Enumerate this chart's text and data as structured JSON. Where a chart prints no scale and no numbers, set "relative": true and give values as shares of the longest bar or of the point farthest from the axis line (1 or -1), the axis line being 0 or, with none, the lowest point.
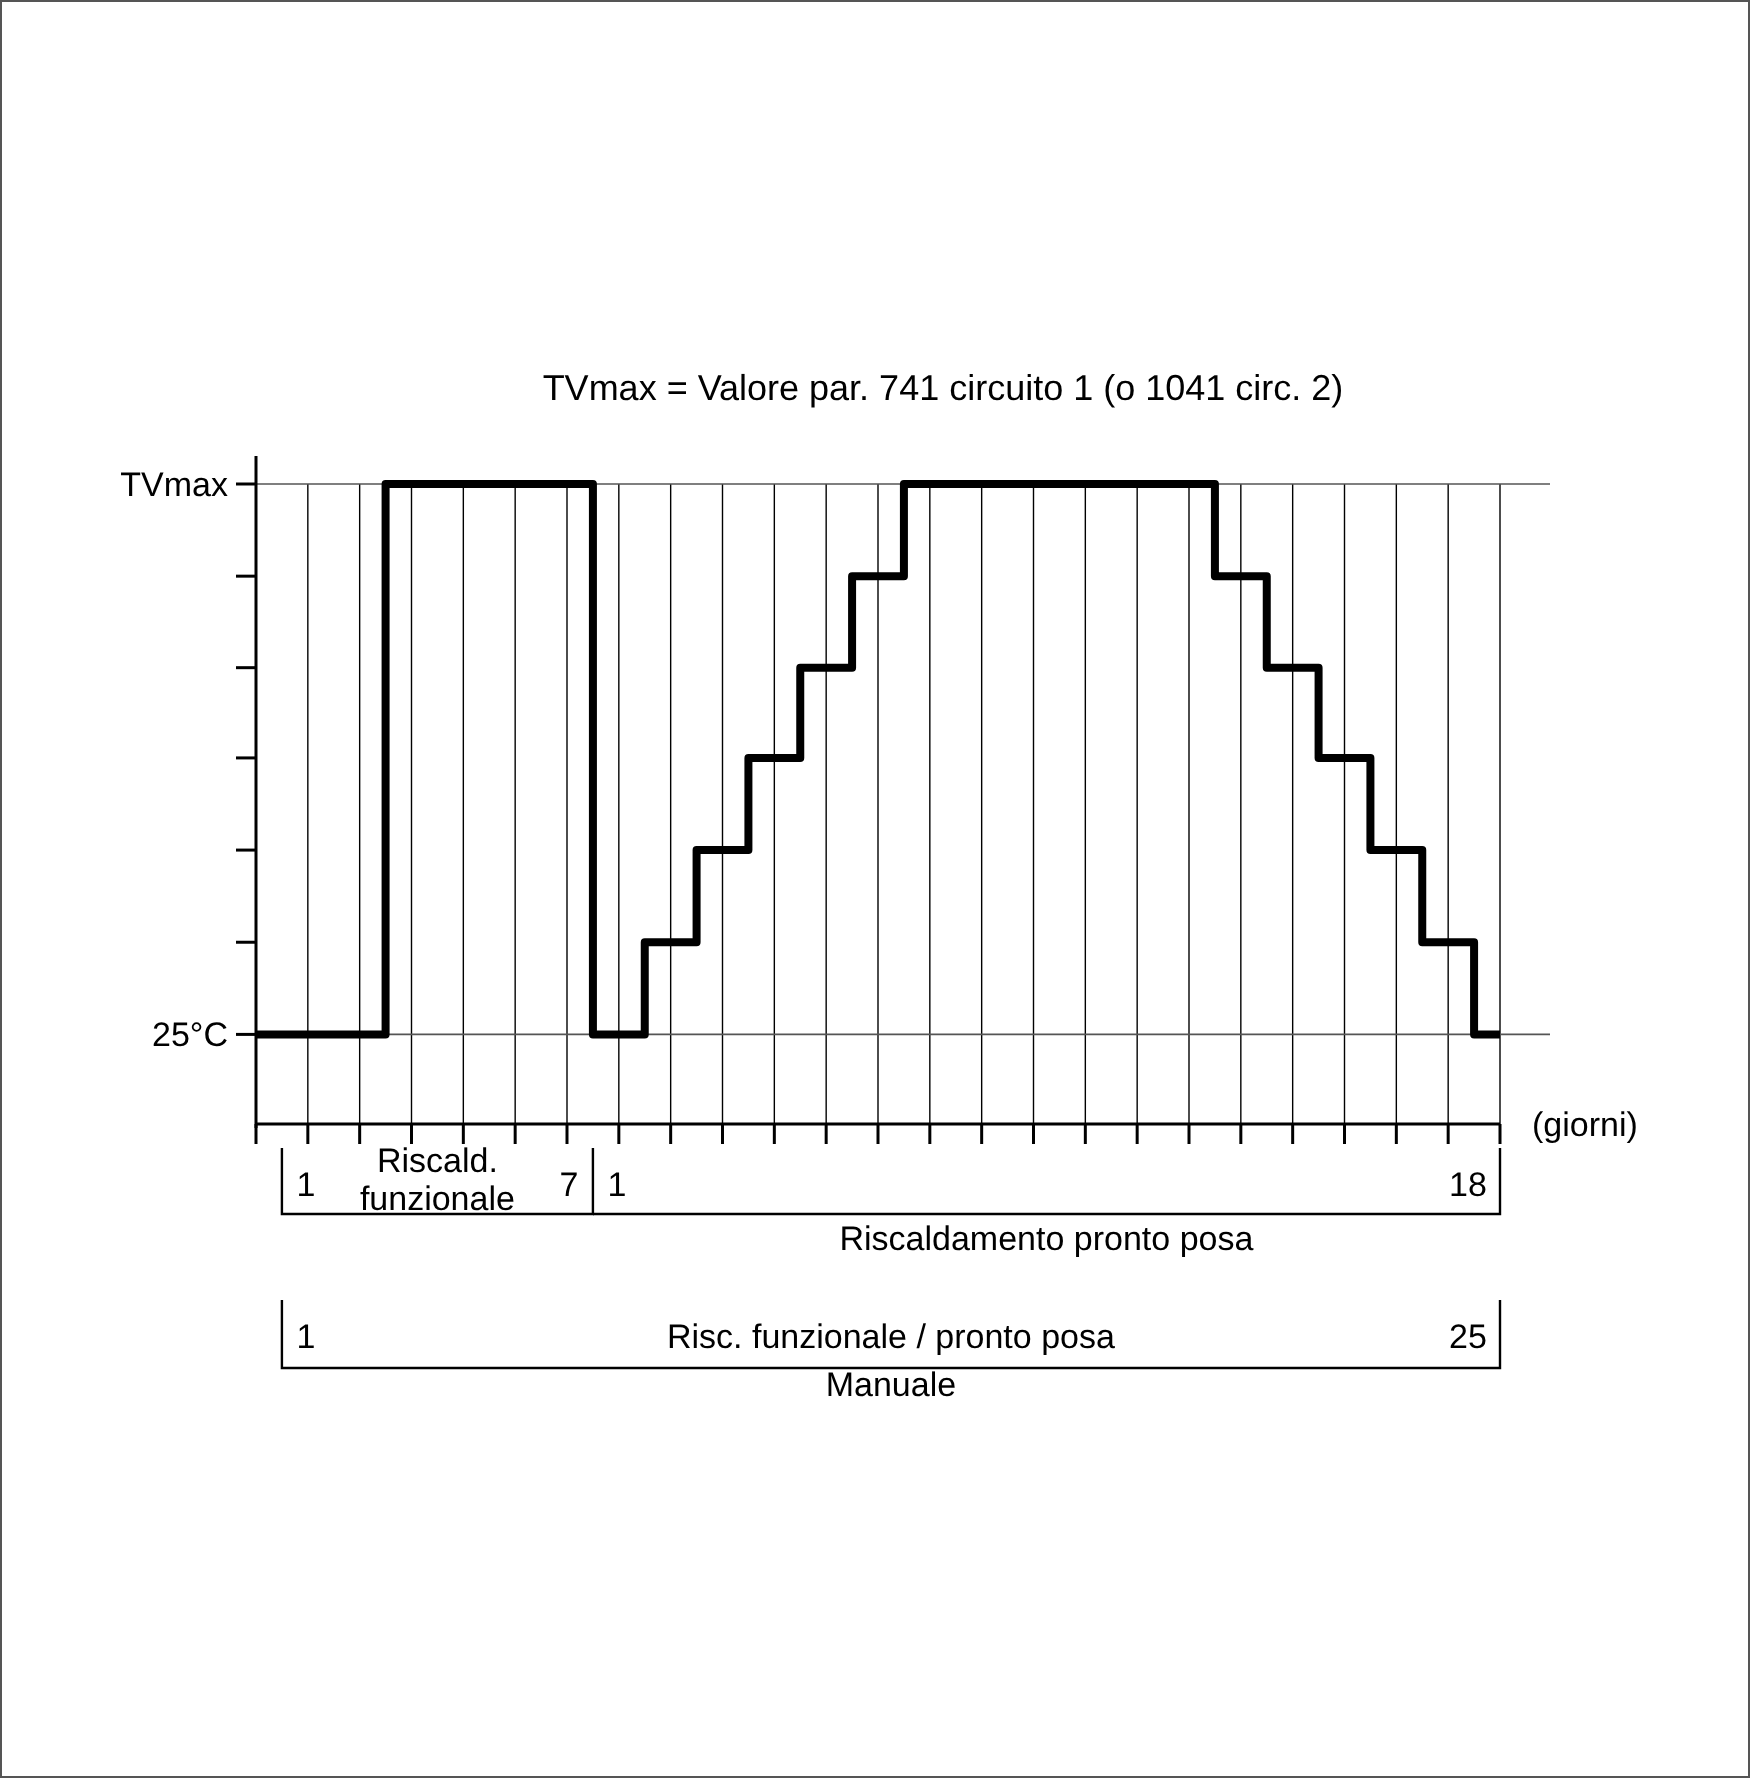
{
  "chart_data": {
    "type": "step",
    "title": "TVmax = Valore par. 741 circuito 1 (o 1041 circ. 2)",
    "xlabel": "(giorni)",
    "relative": true,
    "categories": [
      null,
      null,
      null,
      null,
      null,
      null,
      null,
      null,
      null,
      null,
      null,
      null,
      null,
      null,
      null,
      null,
      null,
      null,
      null,
      null,
      null,
      null,
      null,
      null,
      null
    ],
    "values": [
      0.14,
      0.14,
      0.14,
      1,
      1,
      1,
      1,
      0.14,
      0.284,
      0.428,
      0.572,
      0.713,
      0.856,
      1,
      1,
      1,
      1,
      1,
      1,
      0.856,
      0.713,
      0.572,
      0.428,
      0.284,
      0.14
    ],
    "color": "#000000",
    "grid": "x",
    "ref_lines": [
      {
        "axis": "y",
        "value": 1,
        "label": "TVmax",
        "color": "#555555"
      },
      {
        "axis": "y",
        "value": 0.14,
        "label": "25°C",
        "color": "#555555"
      }
    ],
    "annotations": [
      "1",
      "Riscald.\nfunzionale",
      "7",
      "1",
      "18",
      "Riscaldamento pronto posa",
      "1",
      "Risc. funzionale / pronto posa",
      "25",
      "Manuale"
    ]
  }
}
